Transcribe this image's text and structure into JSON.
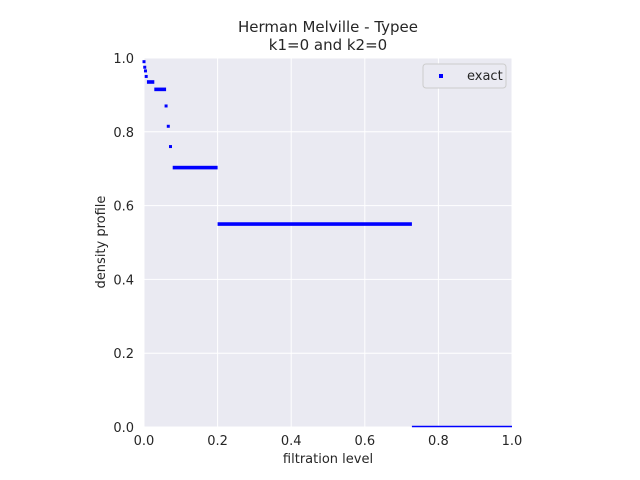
{
  "chart_data": {
    "type": "scatter",
    "title_line1": "Herman Melville - Typee",
    "title_line2": "k1=0 and k2=0",
    "xlabel": "filtration level",
    "ylabel": "density profile",
    "xlim": [
      0.0,
      1.0
    ],
    "ylim": [
      0.0,
      1.0
    ],
    "x_ticks": [
      "0.0",
      "0.2",
      "0.4",
      "0.6",
      "0.8",
      "1.0"
    ],
    "y_ticks": [
      "0.0",
      "0.2",
      "0.4",
      "0.6",
      "0.8",
      "1.0"
    ],
    "grid": true,
    "legend_position": "top-right",
    "colors": {
      "background": "#eaeaf2",
      "grid": "#ffffff",
      "marker": "#0000ff"
    },
    "series": [
      {
        "name": "exact",
        "marker": "square",
        "steps": [
          {
            "x_start": 0.0,
            "x_end": 0.002,
            "y": 0.99
          },
          {
            "x_start": 0.002,
            "x_end": 0.004,
            "y": 0.975
          },
          {
            "x_start": 0.004,
            "x_end": 0.006,
            "y": 0.965
          },
          {
            "x_start": 0.006,
            "x_end": 0.008,
            "y": 0.95
          },
          {
            "x_start": 0.008,
            "x_end": 0.028,
            "y": 0.935
          },
          {
            "x_start": 0.028,
            "x_end": 0.06,
            "y": 0.915
          },
          {
            "x_start": 0.06,
            "x_end": 0.066,
            "y": 0.87
          },
          {
            "x_start": 0.066,
            "x_end": 0.072,
            "y": 0.815
          },
          {
            "x_start": 0.072,
            "x_end": 0.078,
            "y": 0.76
          },
          {
            "x_start": 0.078,
            "x_end": 0.2,
            "y": 0.703
          },
          {
            "x_start": 0.2,
            "x_end": 0.728,
            "y": 0.55
          },
          {
            "x_start": 0.728,
            "x_end": 1.0,
            "y": 0.0
          }
        ]
      }
    ]
  }
}
